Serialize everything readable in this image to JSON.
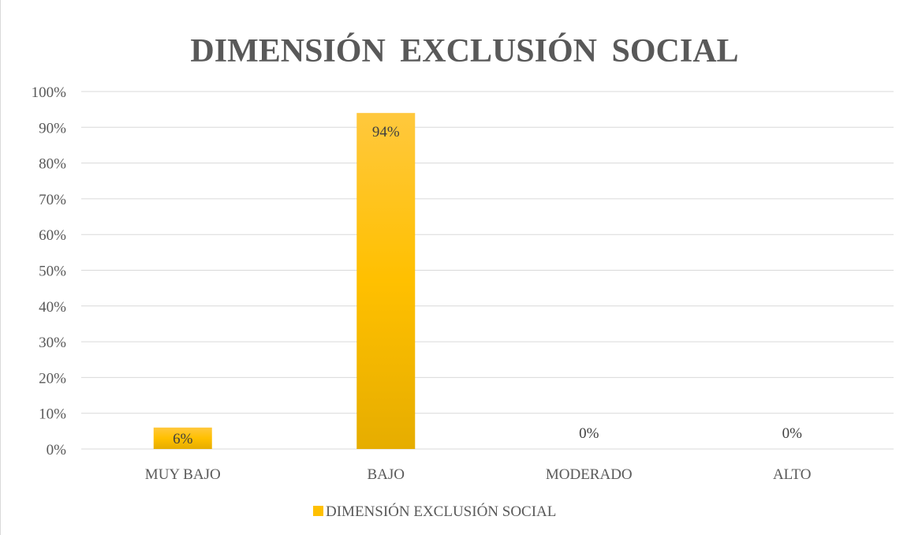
{
  "chart_data": {
    "type": "bar",
    "title": "DIMENSIÓN EXCLUSIÓN SOCIAL",
    "categories": [
      "MUY BAJO",
      "BAJO",
      "MODERADO",
      "ALTO"
    ],
    "series": [
      {
        "name": "DIMENSIÓN EXCLUSIÓN SOCIAL",
        "values": [
          6,
          94,
          0,
          0
        ],
        "labels": [
          "6%",
          "94%",
          "0%",
          "0%"
        ]
      }
    ],
    "yticks": [
      "0%",
      "10%",
      "20%",
      "30%",
      "40%",
      "50%",
      "60%",
      "70%",
      "80%",
      "90%",
      "100%"
    ],
    "ylim": [
      0,
      100
    ],
    "grid": true,
    "legend_position": "bottom",
    "colors": {
      "bar_top": "#ffc83d",
      "bar_mid": "#ffc000",
      "bar_bottom": "#e6ad00",
      "grid": "#d9d9d9",
      "text": "#595959"
    }
  }
}
